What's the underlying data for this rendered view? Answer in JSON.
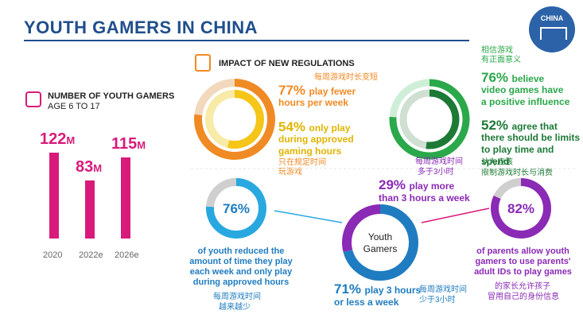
{
  "title": "YOUTH GAMERS IN CHINA",
  "badge": "CHINA",
  "youth": {
    "heading": "NUMBER OF YOUTH GAMERS",
    "subheading": "AGE 6 TO 17",
    "unit": "M"
  },
  "regulations": {
    "heading": "IMPACT OF NEW REGULATIONS",
    "cn_fewer": "每周游戏时长变短",
    "p77_pct": "77%",
    "p77_text_1": "play fewer",
    "p77_text_2": "hours per week",
    "p54_pct": "54%",
    "p54_text_1": "only play",
    "p54_text_2": "during approved",
    "p54_text_3": "gaming hours",
    "cn_approved_1": "只在规定时间",
    "cn_approved_2": "玩游戏"
  },
  "beliefs": {
    "cn_positive_1": "相信游戏",
    "cn_positive_2": "有正面意义",
    "p76_pct": "76%",
    "p76_text_1": "believe",
    "p76_text_2": "video games have",
    "p76_text_3": "a positive influence",
    "p52_pct": "52%",
    "p52_text_1": "agree that",
    "p52_text_2": "there should be limits",
    "p52_text_3": "to play time and spend",
    "cn_limits_1": "认为应该",
    "cn_limits_2": "限制游戏时长与消费"
  },
  "reduced": {
    "pct": "76%",
    "text_1": "of youth reduced the",
    "text_2": "amount of time they play",
    "text_3": "each week and only play",
    "text_4": "during approved hours",
    "cn_1": "每周游戏时间",
    "cn_2": "越来越少"
  },
  "youth_gamers_ring": {
    "label_1": "Youth",
    "label_2": "Gamers",
    "cn_more_1": "每周游戏时间",
    "cn_more_2": "多于3小时",
    "p29_pct": "29%",
    "p29_text_1": "play more",
    "p29_text_2": "than 3 hours a week",
    "p71_pct": "71%",
    "p71_text_1": "play 3 hours",
    "p71_text_2": "or less a week",
    "cn_less_1": "每周游戏时间",
    "cn_less_2": "少于3小时"
  },
  "parents": {
    "pct": "82%",
    "text_1": "of parents allow youth",
    "text_2": "gamers to use parents'",
    "text_3": "adult IDs to play games",
    "cn_1": "的家长允许孩子",
    "cn_2": "冒用自己的身份信息"
  },
  "colors": {
    "pink": "#d81b7a",
    "orange": "#f08a24",
    "yellow": "#f5c518",
    "green": "#2aa84a",
    "purple": "#8a2ab5",
    "blue": "#29a8e0",
    "grey": "#cfcfcf",
    "navy": "#1f4e8c"
  },
  "chart_data": [
    {
      "type": "bar",
      "categories": [
        "2020",
        "2022e",
        "2026e"
      ],
      "values": [
        122,
        83,
        115
      ],
      "labels": [
        "122",
        "83",
        "115"
      ],
      "title": "NUMBER OF YOUTH GAMERS",
      "subtitle": "AGE 6 TO 17",
      "ylim": [
        0,
        122
      ]
    },
    {
      "type": "pie",
      "series": [
        {
          "values": [
            77,
            23
          ]
        },
        {
          "values": [
            54,
            46
          ]
        }
      ]
    },
    {
      "type": "pie",
      "series": [
        {
          "values": [
            76,
            24
          ]
        },
        {
          "values": [
            52,
            48
          ]
        }
      ]
    },
    {
      "type": "pie",
      "values": [
        76,
        24
      ]
    },
    {
      "type": "pie",
      "values": [
        71,
        29
      ]
    },
    {
      "type": "pie",
      "values": [
        82,
        18
      ]
    }
  ]
}
